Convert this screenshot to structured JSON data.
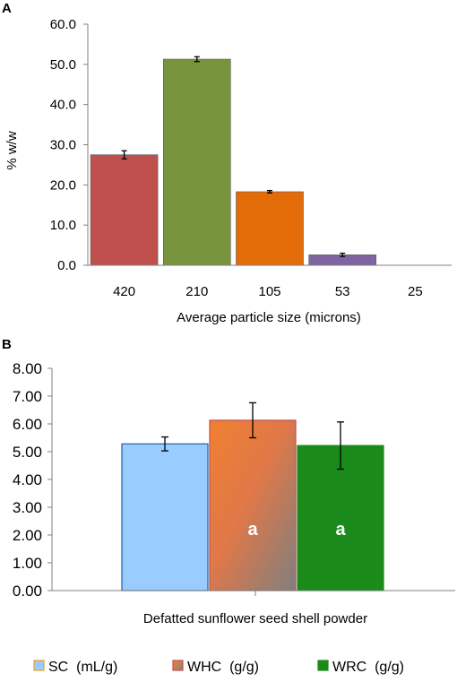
{
  "chart_data": [
    {
      "panel": "A",
      "type": "bar",
      "categories": [
        "420",
        "210",
        "105",
        "53",
        "25"
      ],
      "values": [
        27.5,
        51.3,
        18.3,
        2.6,
        0
      ],
      "errors": [
        1.0,
        0.6,
        0.3,
        0.4,
        0
      ],
      "colors": [
        "#c0504d",
        "#77933c",
        "#e36c09",
        "#8064a2",
        "#ffffff"
      ],
      "xlabel": "Average particle size  (microns)",
      "ylabel": "%  w/w",
      "ylim": [
        0,
        60
      ],
      "yticks": [
        "0.0",
        "10.0",
        "20.0",
        "30.0",
        "40.0",
        "50.0",
        "60.0"
      ],
      "grid": false,
      "legend": "none"
    },
    {
      "panel": "B",
      "type": "bar",
      "categories": [
        "Defatted sunflower seed shell powder"
      ],
      "series": [
        {
          "name": "SC  (mL/g)",
          "values": [
            5.28
          ],
          "errors": [
            0.25
          ],
          "color": "#99ccff",
          "stroke": "#1f5fa8",
          "label": ""
        },
        {
          "name": "WHC  (g/g)",
          "values": [
            6.13
          ],
          "errors": [
            0.63
          ],
          "color": "#ed7d31",
          "stroke": "#c0504d",
          "label": "a"
        },
        {
          "name": "WRC  (g/g)",
          "values": [
            5.22
          ],
          "errors": [
            0.85
          ],
          "color": "#1a8a1a",
          "stroke": "#1a8a1a",
          "label": "a"
        }
      ],
      "ylim": [
        0,
        8
      ],
      "yticks": [
        "0.00",
        "1.00",
        "2.00",
        "3.00",
        "4.00",
        "5.00",
        "6.00",
        "7.00",
        "8.00"
      ],
      "grid": false,
      "legend": "bottom"
    }
  ]
}
